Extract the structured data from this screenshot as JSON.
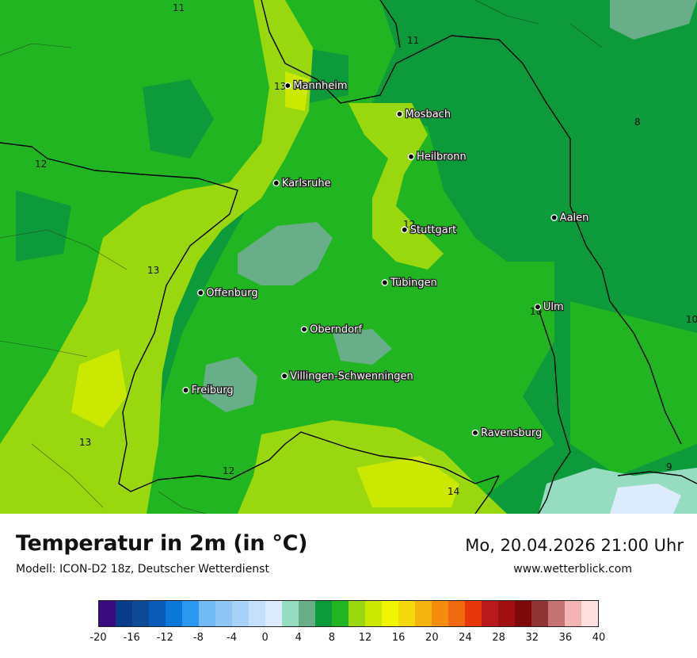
{
  "title": "Temperatur in 2m (in °C)",
  "model": "Modell: ICON-D2 18z, Deutscher Wetterdienst",
  "datetime": "Mo, 20.04.2026 21:00 Uhr",
  "website": "www.wetterblick.com",
  "legend": {
    "min": -20,
    "max": 40,
    "step": 2,
    "ticks": [
      "-20",
      "-16",
      "-12",
      "-8",
      "-4",
      "0",
      "4",
      "8",
      "12",
      "16",
      "20",
      "24",
      "28",
      "32",
      "36",
      "40"
    ],
    "colors": [
      "#3a0a7f",
      "#0a3a8a",
      "#0b4a95",
      "#0a5ab8",
      "#0a78d8",
      "#2a98f0",
      "#72baf5",
      "#8fc6f5",
      "#a8d2f8",
      "#c4e0fa",
      "#dcecfc",
      "#96dcc0",
      "#68ae88",
      "#0d9a3a",
      "#21b521",
      "#99d70f",
      "#cbe800",
      "#f0f500",
      "#f5d80d",
      "#f5b40d",
      "#f58c0d",
      "#ef6a0f",
      "#e6370a",
      "#b8191c",
      "#a01010",
      "#7f0808",
      "#8f3333",
      "#c57272",
      "#f3b4b4",
      "#ffe0e0"
    ]
  },
  "cities": [
    {
      "name": "Mannheim",
      "lon": 8.47,
      "lat": 49.49
    },
    {
      "name": "Mosbach",
      "lon": 9.15,
      "lat": 49.35
    },
    {
      "name": "Heilbronn",
      "lon": 9.22,
      "lat": 49.14
    },
    {
      "name": "Karlsruhe",
      "lon": 8.4,
      "lat": 49.01
    },
    {
      "name": "Aalen",
      "lon": 10.09,
      "lat": 48.84
    },
    {
      "name": "Stuttgart",
      "lon": 9.18,
      "lat": 48.78
    },
    {
      "name": "Tübingen",
      "lon": 9.06,
      "lat": 48.52
    },
    {
      "name": "Offenburg",
      "lon": 7.94,
      "lat": 48.47
    },
    {
      "name": "Ulm",
      "lon": 9.99,
      "lat": 48.4
    },
    {
      "name": "Oberndorf",
      "lon": 8.57,
      "lat": 48.29
    },
    {
      "name": "Villingen-Schwenningen",
      "lon": 8.45,
      "lat": 48.06
    },
    {
      "name": "Freiburg",
      "lon": 7.85,
      "lat": 47.99
    },
    {
      "name": "Ravensburg",
      "lon": 9.61,
      "lat": 47.78
    }
  ],
  "isotherm_labels": [
    "11",
    "11",
    "13",
    "8",
    "12",
    "12",
    "13",
    "10",
    "10",
    "13",
    "12",
    "14",
    "9"
  ]
}
